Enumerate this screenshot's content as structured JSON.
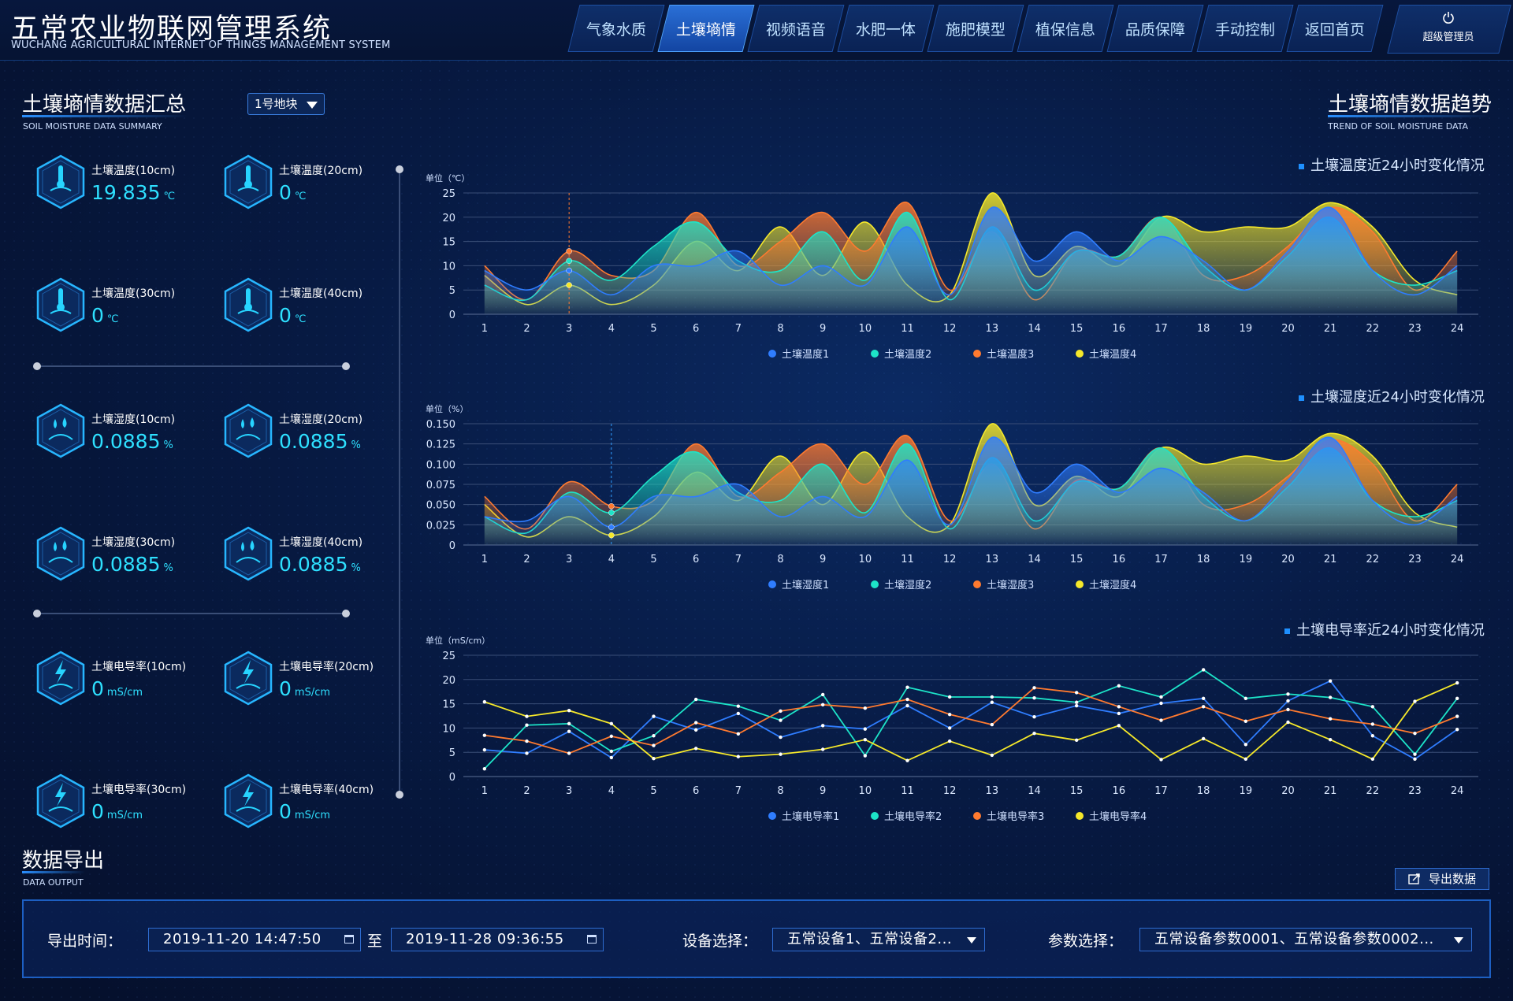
{
  "header": {
    "title": "五常农业物联网管理系统",
    "subtitle": "WUCHANG AGRICULTURAL INTERNET OF THINGS MANAGEMENT SYSTEM",
    "nav": [
      "气象水质",
      "土壤墒情",
      "视频语音",
      "水肥一体",
      "施肥模型",
      "植保信息",
      "品质保障",
      "手动控制",
      "返回首页"
    ],
    "active_nav": "土壤墒情",
    "user": "超级管理员"
  },
  "summary": {
    "title": "土壤墒情数据汇总",
    "subtitle": "SOIL MOISTURE DATA SUMMARY",
    "plot_select": "1号地块",
    "sensors": [
      {
        "label": "土壤温度(10cm)",
        "value": "19.835",
        "unit": "℃",
        "icon": "thermometer-icon"
      },
      {
        "label": "土壤温度(20cm)",
        "value": "0",
        "unit": "℃",
        "icon": "thermometer-icon"
      },
      {
        "label": "土壤温度(30cm)",
        "value": "0",
        "unit": "℃",
        "icon": "thermometer-icon"
      },
      {
        "label": "土壤温度(40cm)",
        "value": "0",
        "unit": "℃",
        "icon": "thermometer-icon"
      },
      {
        "label": "土壤湿度(10cm)",
        "value": "0.0885",
        "unit": "%",
        "icon": "water-drop-icon"
      },
      {
        "label": "土壤湿度(20cm)",
        "value": "0.0885",
        "unit": "%",
        "icon": "water-drop-icon"
      },
      {
        "label": "土壤湿度(30cm)",
        "value": "0.0885",
        "unit": "%",
        "icon": "water-drop-icon"
      },
      {
        "label": "土壤湿度(40cm)",
        "value": "0.0885",
        "unit": "%",
        "icon": "water-drop-icon"
      },
      {
        "label": "土壤电导率(10cm)",
        "value": "0",
        "unit": "mS/cm",
        "icon": "lightning-icon"
      },
      {
        "label": "土壤电导率(20cm)",
        "value": "0",
        "unit": "mS/cm",
        "icon": "lightning-icon"
      },
      {
        "label": "土壤电导率(30cm)",
        "value": "0",
        "unit": "mS/cm",
        "icon": "lightning-icon"
      },
      {
        "label": "土壤电导率(40cm)",
        "value": "0",
        "unit": "mS/cm",
        "icon": "lightning-icon"
      }
    ]
  },
  "trend": {
    "title": "土壤墒情数据趋势",
    "subtitle": "TREND OF SOIL MOISTURE DATA"
  },
  "colors": {
    "s1": "#2f7dff",
    "s2": "#1de4c8",
    "s3": "#ff7a2f",
    "s4": "#f5e82a"
  },
  "chart_data": [
    {
      "type": "area",
      "title": "土壤温度近24小时变化情况",
      "unit_label": "单位（℃）",
      "x": [
        1,
        2,
        3,
        4,
        5,
        6,
        7,
        8,
        9,
        10,
        11,
        12,
        13,
        14,
        15,
        16,
        17,
        18,
        19,
        20,
        21,
        22,
        23,
        24
      ],
      "ylim": [
        0,
        25
      ],
      "yticks": [
        "0",
        "5",
        "10",
        "15",
        "20",
        "25"
      ],
      "series": [
        {
          "name": "土壤温度1",
          "values": [
            9,
            5,
            9,
            4,
            10,
            10,
            13,
            6,
            10,
            6,
            18,
            4,
            22,
            11,
            17,
            11,
            16,
            11,
            5,
            13,
            22,
            9,
            4,
            10
          ]
        },
        {
          "name": "土壤温度2",
          "values": [
            6,
            3,
            11,
            7,
            14,
            19,
            11,
            9,
            17,
            7,
            21,
            3,
            18,
            5,
            13,
            12,
            20,
            10,
            5,
            12,
            20,
            9,
            6,
            9
          ]
        },
        {
          "name": "土壤温度3",
          "values": [
            10,
            3,
            13,
            8,
            9,
            21,
            10,
            15,
            21,
            13,
            23,
            5,
            17,
            3,
            13,
            12,
            20,
            8,
            8,
            14,
            22,
            17,
            5,
            13
          ]
        },
        {
          "name": "土壤温度4",
          "values": [
            8,
            2,
            6,
            2,
            6,
            15,
            9,
            18,
            8,
            19,
            6,
            4,
            25,
            8,
            14,
            10,
            20,
            17,
            18,
            18,
            23,
            18,
            7,
            4
          ]
        }
      ]
    },
    {
      "type": "area",
      "title": "土壤湿度近24小时变化情况",
      "unit_label": "单位（%）",
      "x": [
        1,
        2,
        3,
        4,
        5,
        6,
        7,
        8,
        9,
        10,
        11,
        12,
        13,
        14,
        15,
        16,
        17,
        18,
        19,
        20,
        21,
        22,
        23,
        24
      ],
      "ylim": [
        0,
        0.15
      ],
      "yticks": [
        "0",
        "0.025",
        "0.050",
        "0.075",
        "0.100",
        "0.125",
        "0.150"
      ],
      "series": [
        {
          "name": "土壤湿度1",
          "values": [
            0.035,
            0.03,
            0.06,
            0.022,
            0.06,
            0.06,
            0.075,
            0.035,
            0.06,
            0.035,
            0.105,
            0.025,
            0.133,
            0.065,
            0.1,
            0.065,
            0.095,
            0.065,
            0.03,
            0.08,
            0.133,
            0.055,
            0.025,
            0.06
          ]
        },
        {
          "name": "土壤湿度2",
          "values": [
            0.035,
            0.015,
            0.065,
            0.04,
            0.085,
            0.115,
            0.065,
            0.055,
            0.1,
            0.04,
            0.125,
            0.02,
            0.108,
            0.03,
            0.078,
            0.07,
            0.12,
            0.06,
            0.03,
            0.072,
            0.12,
            0.055,
            0.035,
            0.055
          ]
        },
        {
          "name": "土壤湿度3",
          "values": [
            0.06,
            0.02,
            0.078,
            0.048,
            0.055,
            0.125,
            0.06,
            0.09,
            0.125,
            0.075,
            0.135,
            0.03,
            0.1,
            0.02,
            0.08,
            0.07,
            0.12,
            0.05,
            0.05,
            0.085,
            0.13,
            0.1,
            0.03,
            0.075
          ]
        },
        {
          "name": "土壤湿度4",
          "values": [
            0.05,
            0.01,
            0.035,
            0.012,
            0.035,
            0.09,
            0.055,
            0.11,
            0.05,
            0.115,
            0.035,
            0.025,
            0.15,
            0.05,
            0.085,
            0.06,
            0.12,
            0.1,
            0.11,
            0.105,
            0.138,
            0.11,
            0.04,
            0.022
          ]
        }
      ]
    },
    {
      "type": "line",
      "title": "土壤电导率近24小时变化情况",
      "unit_label": "单位（mS/cm）",
      "x": [
        1,
        2,
        3,
        4,
        5,
        6,
        7,
        8,
        9,
        10,
        11,
        12,
        13,
        14,
        15,
        16,
        17,
        18,
        19,
        20,
        21,
        22,
        23,
        24
      ],
      "ylim": [
        0,
        25
      ],
      "yticks": [
        "0",
        "5",
        "10",
        "15",
        "20",
        "25"
      ],
      "series": [
        {
          "name": "土壤电导率1",
          "values": [
            5.5,
            4.8,
            9.3,
            3.9,
            12.4,
            9.6,
            13.0,
            8.1,
            10.5,
            9.8,
            14.6,
            10.0,
            15.3,
            12.3,
            14.6,
            13.0,
            15.1,
            16.1,
            6.6,
            15.6,
            19.7,
            8.4,
            3.6,
            9.7
          ]
        },
        {
          "name": "土壤电导率2",
          "values": [
            1.6,
            10.6,
            10.9,
            5.2,
            8.4,
            15.9,
            14.5,
            11.6,
            16.9,
            4.3,
            18.4,
            16.4,
            16.4,
            16.2,
            15.3,
            18.7,
            16.4,
            22.0,
            16.1,
            17.0,
            16.3,
            14.4,
            4.6,
            16.1
          ]
        },
        {
          "name": "土壤电导率3",
          "values": [
            8.5,
            7.3,
            4.8,
            8.3,
            6.4,
            11.1,
            8.8,
            13.5,
            14.8,
            14.1,
            15.9,
            12.8,
            10.7,
            18.3,
            17.3,
            14.4,
            11.6,
            14.4,
            11.4,
            13.8,
            11.9,
            10.8,
            8.9,
            12.4
          ]
        },
        {
          "name": "土壤电导率4",
          "values": [
            15.4,
            12.4,
            13.6,
            10.9,
            3.7,
            5.8,
            4.1,
            4.6,
            5.6,
            7.6,
            3.3,
            7.3,
            4.4,
            8.9,
            7.5,
            10.5,
            3.5,
            7.8,
            3.6,
            11.2,
            7.6,
            3.6,
            15.5,
            19.3
          ]
        }
      ]
    }
  ],
  "export": {
    "title": "数据导出",
    "subtitle": "DATA OUTPUT",
    "button": "导出数据",
    "time_label": "导出时间：",
    "start": "2019-11-20  14:47:50",
    "to": "至",
    "end": "2019-11-28  09:36:55",
    "device_label": "设备选择：",
    "device_value": "五常设备1、五常设备2...",
    "param_label": "参数选择：",
    "param_value": "五常设备参数0001、五常设备参数0002..."
  }
}
